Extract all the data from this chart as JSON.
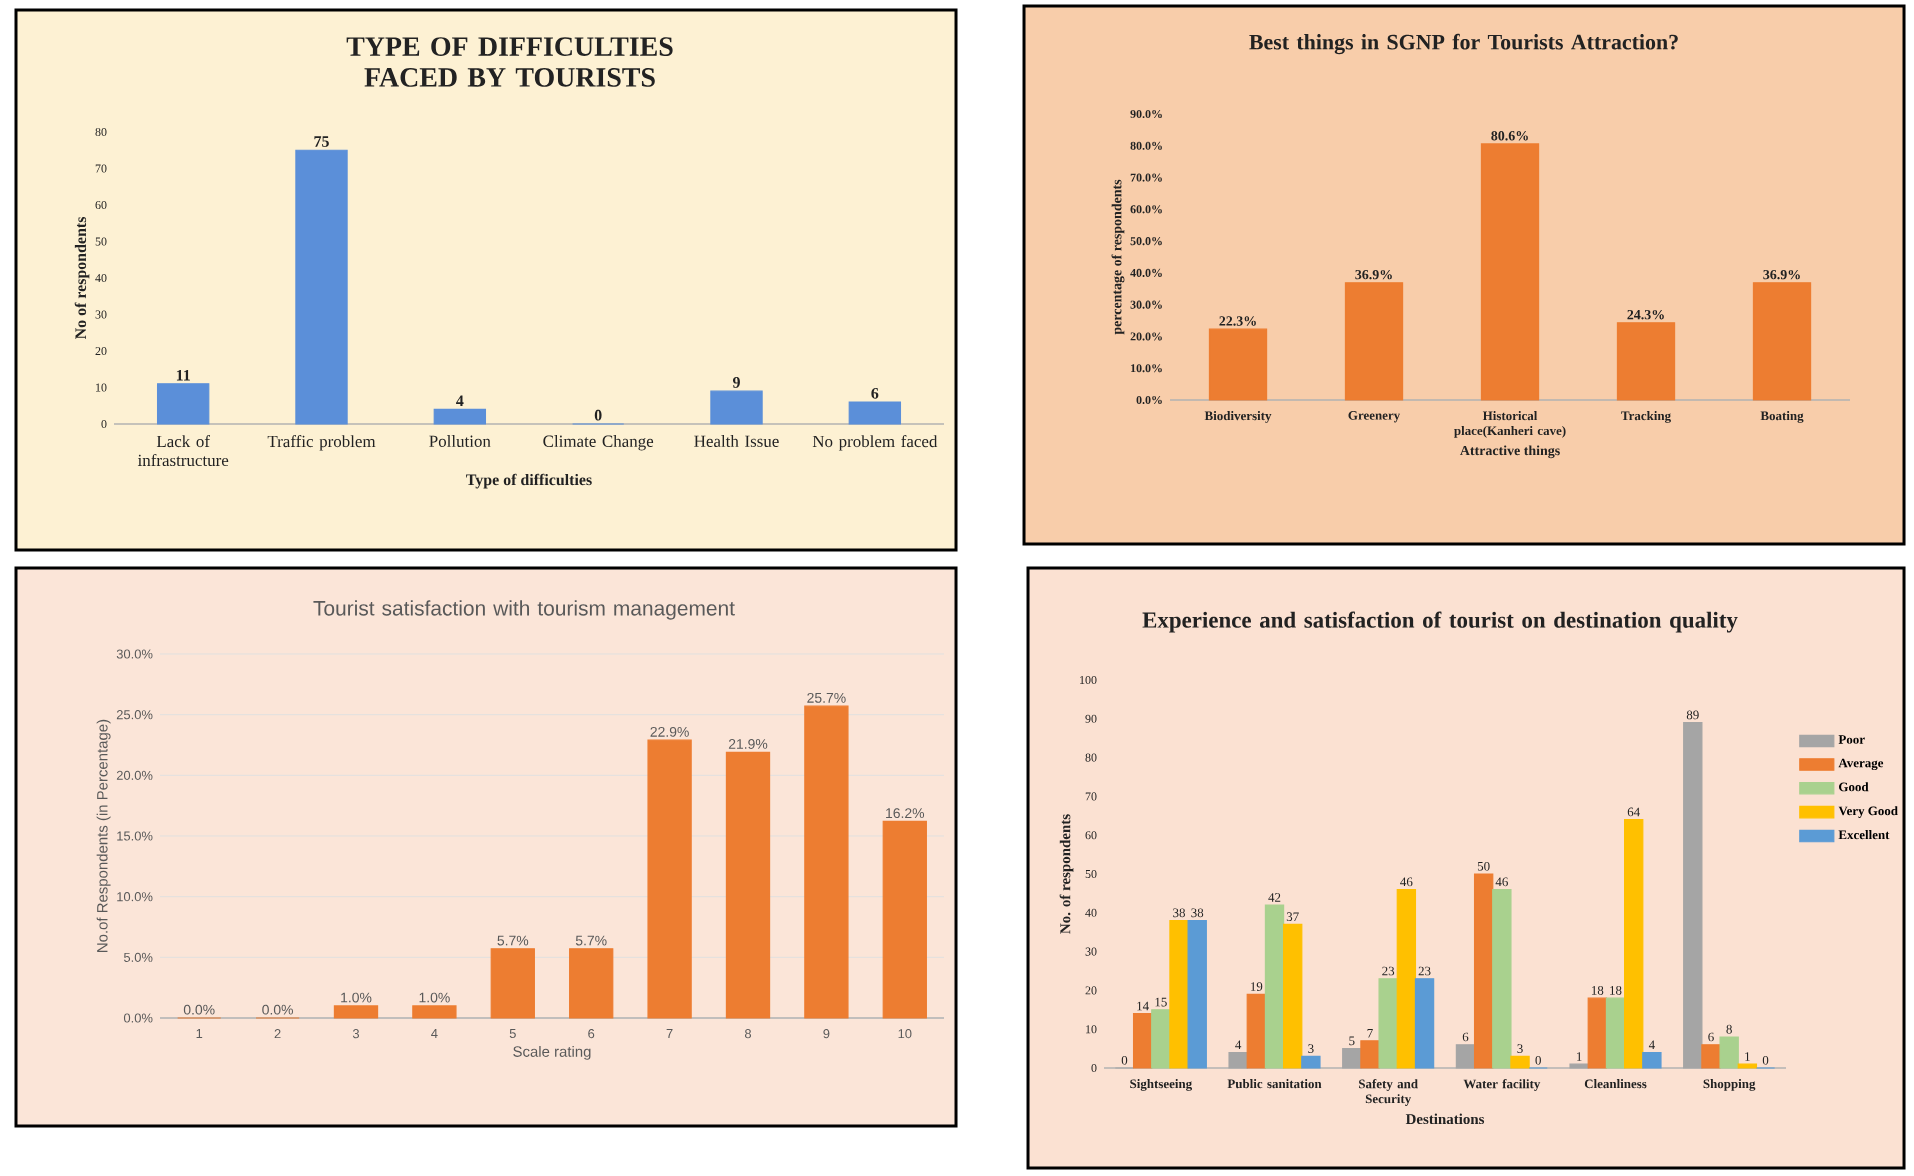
{
  "chart_data": [
    {
      "type": "bar",
      "title": "TYPE OF DIFFICULTIES FACED BY TOURISTS",
      "xlabel": "Type of difficulties",
      "ylabel": "No of respondents",
      "categories": [
        "Lack of infrastructure",
        "Traffic problem",
        "Pollution",
        "Climate Change",
        "Health Issue",
        "No problem faced"
      ],
      "values": [
        11,
        75,
        4,
        0,
        9,
        6
      ],
      "color": "#5b8fd9",
      "ylim": [
        0,
        80
      ],
      "yticks": [
        0,
        10,
        20,
        30,
        40,
        50,
        60,
        70,
        80
      ],
      "data_labels": true
    },
    {
      "type": "bar",
      "title": "Best things in SGNP for Tourists Attraction?",
      "xlabel": "Attractive things",
      "ylabel": "percentage of respondents",
      "categories": [
        "Biodiversity",
        "Greenery",
        "Historical place(Kanheri cave)",
        "Tracking",
        "Boating"
      ],
      "values": [
        22.3,
        36.9,
        80.6,
        24.3,
        36.9
      ],
      "value_labels": [
        "22.3%",
        "36.9%",
        "80.6%",
        "24.3%",
        "36.9%"
      ],
      "color": "#ed7d31",
      "ylim": [
        0,
        90
      ],
      "yticks": [
        {
          "value": 0,
          "label": "0.0%"
        },
        {
          "value": 10,
          "label": "10.0%"
        },
        {
          "value": 20,
          "label": "20.0%"
        },
        {
          "value": 30,
          "label": "30.0%"
        },
        {
          "value": 40,
          "label": "40.0%"
        },
        {
          "value": 50,
          "label": "50.0%"
        },
        {
          "value": 60,
          "label": "60.0%"
        },
        {
          "value": 70,
          "label": "70.0%"
        },
        {
          "value": 80,
          "label": "80.0%"
        },
        {
          "value": 90,
          "label": "90.0%"
        }
      ]
    },
    {
      "type": "bar",
      "title": "Tourist satisfaction with tourism management",
      "xlabel": "Scale rating",
      "ylabel": "No.of Respondents (in Percentage)",
      "categories": [
        "1",
        "2",
        "3",
        "4",
        "5",
        "6",
        "7",
        "8",
        "9",
        "10"
      ],
      "values": [
        0,
        0,
        1.0,
        1.0,
        5.7,
        5.7,
        22.9,
        21.9,
        25.7,
        16.2
      ],
      "value_labels": [
        "0.0%",
        "0.0%",
        "1.0%",
        "1.0%",
        "5.7%",
        "5.7%",
        "22.9%",
        "21.9%",
        "25.7%",
        "16.2%"
      ],
      "color": "#ed7d31",
      "ylim": [
        0,
        30
      ],
      "yticks": [
        {
          "value": 0,
          "label": "0.0%"
        },
        {
          "value": 5,
          "label": "5.0%"
        },
        {
          "value": 10,
          "label": "10.0%"
        },
        {
          "value": 15,
          "label": "15.0%"
        },
        {
          "value": 20,
          "label": "20.0%"
        },
        {
          "value": 25,
          "label": "25.0%"
        },
        {
          "value": 30,
          "label": "30.0%"
        }
      ],
      "grid": "y"
    },
    {
      "type": "bar",
      "title": "Experience and satisfaction of tourist on destination quality",
      "xlabel": "Destinations",
      "ylabel": "No. of respondents",
      "categories": [
        "Sightseeing",
        "Public sanitation",
        "Safety and Security",
        "Water facility",
        "Cleanliness",
        "Shopping"
      ],
      "series": [
        {
          "name": "Poor",
          "color": "#a5a5a5",
          "values": [
            0,
            4,
            5,
            6,
            1,
            89
          ]
        },
        {
          "name": "Average",
          "color": "#ed7d31",
          "values": [
            14,
            19,
            7,
            50,
            18,
            6
          ]
        },
        {
          "name": "Good",
          "color": "#a9d18e",
          "values": [
            15,
            42,
            23,
            46,
            18,
            8
          ]
        },
        {
          "name": "Very Good",
          "color": "#ffc000",
          "values": [
            38,
            37,
            46,
            3,
            64,
            1
          ]
        },
        {
          "name": "Excellent",
          "color": "#5b9bd5",
          "values": [
            38,
            3,
            23,
            0,
            4,
            0
          ]
        }
      ],
      "ylim": [
        0,
        100
      ],
      "yticks": [
        0,
        10,
        20,
        30,
        40,
        50,
        60,
        70,
        80,
        90,
        100
      ],
      "data_labels": true,
      "legend": "right"
    }
  ]
}
